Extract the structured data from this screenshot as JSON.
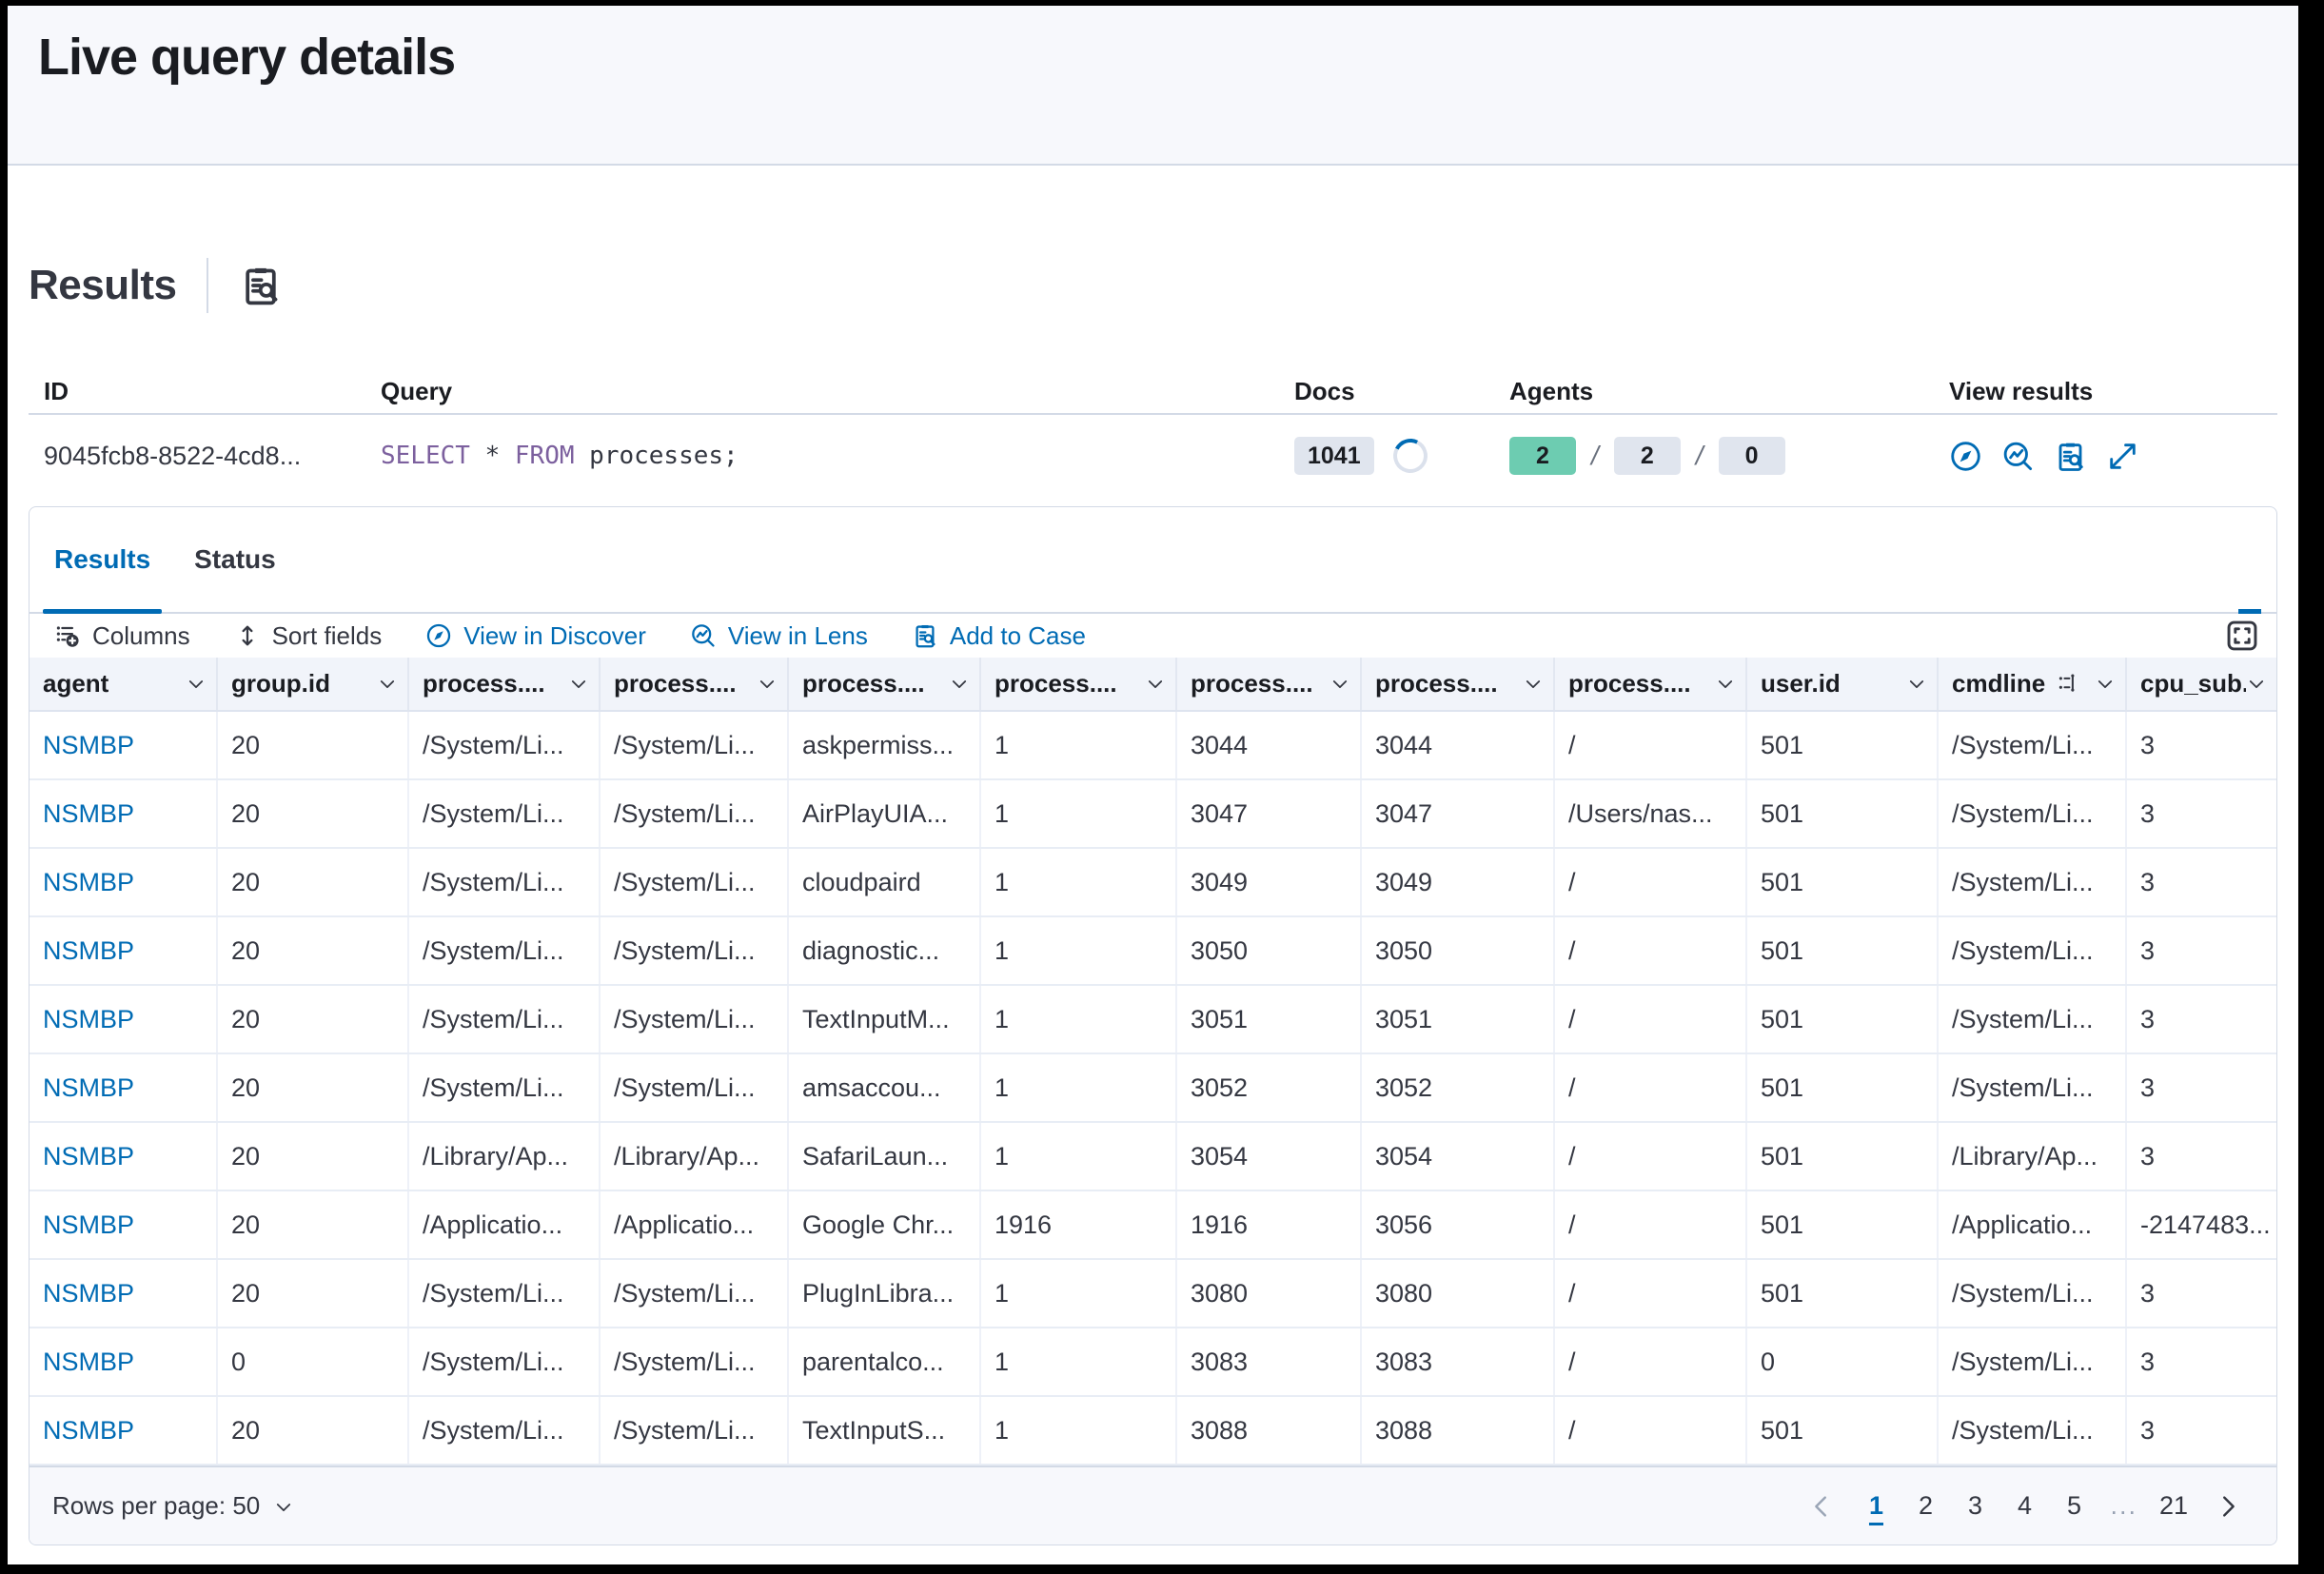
{
  "window": {
    "title": "Live query details"
  },
  "results_panel": {
    "heading": "Results"
  },
  "summary": {
    "columns": [
      "ID",
      "Query",
      "Docs",
      "Agents",
      "View results"
    ],
    "id_value": "9045fcb8-8522-4cd8...",
    "query": [
      {
        "text": "SELECT",
        "kind": "keyword"
      },
      {
        "text": " * ",
        "kind": "plain"
      },
      {
        "text": "FROM",
        "kind": "keyword"
      },
      {
        "text": " processes;",
        "kind": "plain"
      }
    ],
    "docs_count": "1041",
    "agents_separator": "/",
    "agents": [
      {
        "value": "2",
        "kind": "success"
      },
      {
        "value": "2",
        "kind": "default"
      },
      {
        "value": "0",
        "kind": "default"
      }
    ],
    "view_results_actions": [
      {
        "name": "view-in-discover",
        "icon": "discover"
      },
      {
        "name": "view-in-lens",
        "icon": "lens"
      },
      {
        "name": "inspect-results",
        "icon": "inspect"
      },
      {
        "name": "open-details",
        "icon": "expand"
      }
    ]
  },
  "tabs": [
    {
      "label": "Results",
      "active": true
    },
    {
      "label": "Status",
      "active": false
    }
  ],
  "toolbar": {
    "items": [
      {
        "name": "columns-button",
        "icon": "columns",
        "label": "Columns",
        "kind": "text"
      },
      {
        "name": "sort-fields-button",
        "icon": "sort",
        "label": "Sort fields",
        "kind": "text"
      },
      {
        "name": "view-in-discover-link",
        "icon": "discover",
        "label": "View in Discover",
        "kind": "link"
      },
      {
        "name": "view-in-lens-link",
        "icon": "lens",
        "label": "View in Lens",
        "kind": "link"
      },
      {
        "name": "add-to-case-link",
        "icon": "inspect",
        "label": "Add to Case",
        "kind": "link"
      }
    ]
  },
  "grid": {
    "headers": [
      {
        "label": "agent"
      },
      {
        "label": "group.id"
      },
      {
        "label": "process...."
      },
      {
        "label": "process...."
      },
      {
        "label": "process...."
      },
      {
        "label": "process...."
      },
      {
        "label": "process...."
      },
      {
        "label": "process...."
      },
      {
        "label": "process...."
      },
      {
        "label": "user.id"
      },
      {
        "label": "cmdline",
        "extra_icon": "token"
      },
      {
        "label": "cpu_sub..."
      }
    ],
    "rows": [
      [
        "NSMBP",
        "20",
        "/System/Li...",
        "/System/Li...",
        "askpermiss...",
        "1",
        "3044",
        "3044",
        "/",
        "501",
        "/System/Li...",
        "3"
      ],
      [
        "NSMBP",
        "20",
        "/System/Li...",
        "/System/Li...",
        "AirPlayUIA...",
        "1",
        "3047",
        "3047",
        "/Users/nas...",
        "501",
        "/System/Li...",
        "3"
      ],
      [
        "NSMBP",
        "20",
        "/System/Li...",
        "/System/Li...",
        "cloudpaird",
        "1",
        "3049",
        "3049",
        "/",
        "501",
        "/System/Li...",
        "3"
      ],
      [
        "NSMBP",
        "20",
        "/System/Li...",
        "/System/Li...",
        "diagnostic...",
        "1",
        "3050",
        "3050",
        "/",
        "501",
        "/System/Li...",
        "3"
      ],
      [
        "NSMBP",
        "20",
        "/System/Li...",
        "/System/Li...",
        "TextInputM...",
        "1",
        "3051",
        "3051",
        "/",
        "501",
        "/System/Li...",
        "3"
      ],
      [
        "NSMBP",
        "20",
        "/System/Li...",
        "/System/Li...",
        "amsaccou...",
        "1",
        "3052",
        "3052",
        "/",
        "501",
        "/System/Li...",
        "3"
      ],
      [
        "NSMBP",
        "20",
        "/Library/Ap...",
        "/Library/Ap...",
        "SafariLaun...",
        "1",
        "3054",
        "3054",
        "/",
        "501",
        "/Library/Ap...",
        "3"
      ],
      [
        "NSMBP",
        "20",
        "/Applicatio...",
        "/Applicatio...",
        "Google Chr...",
        "1916",
        "1916",
        "3056",
        "/",
        "501",
        "/Applicatio...",
        "-2147483..."
      ],
      [
        "NSMBP",
        "20",
        "/System/Li...",
        "/System/Li...",
        "PlugInLibra...",
        "1",
        "3080",
        "3080",
        "/",
        "501",
        "/System/Li...",
        "3"
      ],
      [
        "NSMBP",
        "0",
        "/System/Li...",
        "/System/Li...",
        "parentalco...",
        "1",
        "3083",
        "3083",
        "/",
        "0",
        "/System/Li...",
        "3"
      ],
      [
        "NSMBP",
        "20",
        "/System/Li...",
        "/System/Li...",
        "TextInputS...",
        "1",
        "3088",
        "3088",
        "/",
        "501",
        "/System/Li...",
        "3"
      ]
    ]
  },
  "pagination": {
    "rows_per_page_label": "Rows per page: 50",
    "pages": [
      "1",
      "2",
      "3",
      "4",
      "5",
      "...",
      "21"
    ],
    "active_page": "1"
  },
  "colors": {
    "primary": "#006bb4",
    "success_badge": "#6dccb1",
    "default_badge": "#e0e5ee",
    "sql_keyword": "#7c609e",
    "header_band": "#f7f8fc",
    "grid_header": "#f1f4fa",
    "divider": "#d3dae6"
  }
}
